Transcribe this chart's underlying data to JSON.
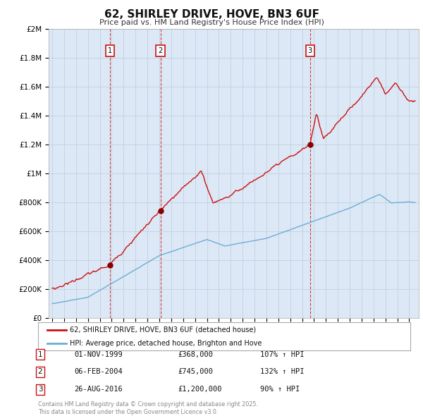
{
  "title": "62, SHIRLEY DRIVE, HOVE, BN3 6UF",
  "subtitle": "Price paid vs. HM Land Registry's House Price Index (HPI)",
  "ylim": [
    0,
    2000000
  ],
  "yticks": [
    0,
    200000,
    400000,
    600000,
    800000,
    1000000,
    1200000,
    1400000,
    1600000,
    1800000,
    2000000
  ],
  "ytick_labels": [
    "£0",
    "£200K",
    "£400K",
    "£600K",
    "£800K",
    "£1M",
    "£1.2M",
    "£1.4M",
    "£1.6M",
    "£1.8M",
    "£2M"
  ],
  "xlim_start": 1994.7,
  "xlim_end": 2025.8,
  "sale_dates": [
    1999.83,
    2004.09,
    2016.65
  ],
  "sale_prices": [
    368000,
    745000,
    1200000
  ],
  "sale_labels": [
    "1",
    "2",
    "3"
  ],
  "vline_color": "#cc2222",
  "hpi_line_color": "#6baed6",
  "price_line_color": "#cc1111",
  "dot_color": "#8B0000",
  "legend_entries": [
    "62, SHIRLEY DRIVE, HOVE, BN3 6UF (detached house)",
    "HPI: Average price, detached house, Brighton and Hove"
  ],
  "table_data": [
    [
      "1",
      "01-NOV-1999",
      "£368,000",
      "107% ↑ HPI"
    ],
    [
      "2",
      "06-FEB-2004",
      "£745,000",
      "132% ↑ HPI"
    ],
    [
      "3",
      "26-AUG-2016",
      "£1,200,000",
      "90% ↑ HPI"
    ]
  ],
  "footer": "Contains HM Land Registry data © Crown copyright and database right 2025.\nThis data is licensed under the Open Government Licence v3.0.",
  "bg_color": "#ffffff",
  "grid_color": "#bbccdd",
  "plot_bg_color": "#dce8f5"
}
